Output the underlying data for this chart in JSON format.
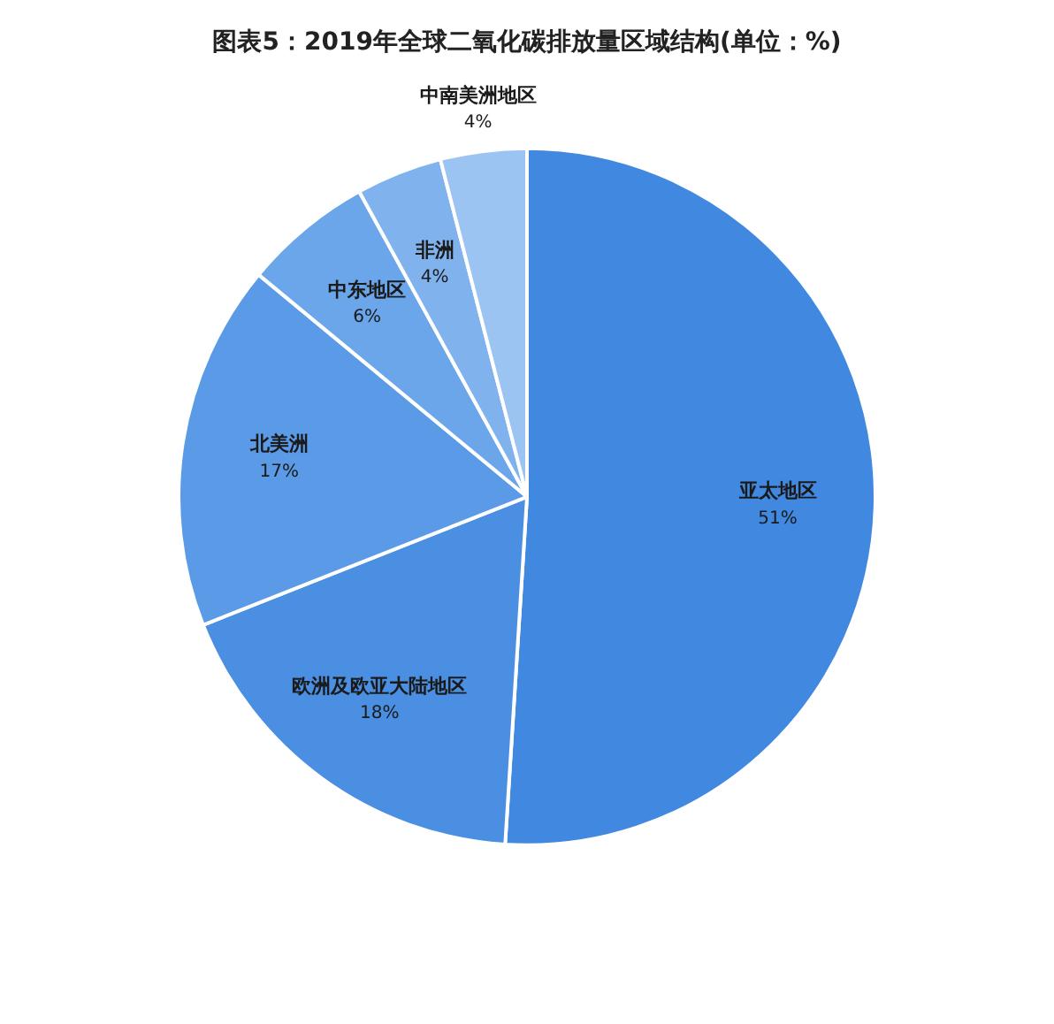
{
  "chart_data": {
    "type": "pie",
    "title": "图表5：2019年全球二氧化碳排放量区域结构(单位：%)",
    "categories": [
      "亚太地区",
      "欧洲及欧亚大陆地区",
      "北美洲",
      "中东地区",
      "非洲",
      "中南美洲地区"
    ],
    "values": [
      51,
      18,
      17,
      6,
      4,
      4
    ],
    "colors": [
      "#4088e0",
      "#4a8fe2",
      "#5a9ae6",
      "#6ba6ea",
      "#80b3ee",
      "#9cc4f2"
    ],
    "value_labels": [
      "51%",
      "18%",
      "17%",
      "6%",
      "4%",
      "4%"
    ],
    "legend": false
  }
}
